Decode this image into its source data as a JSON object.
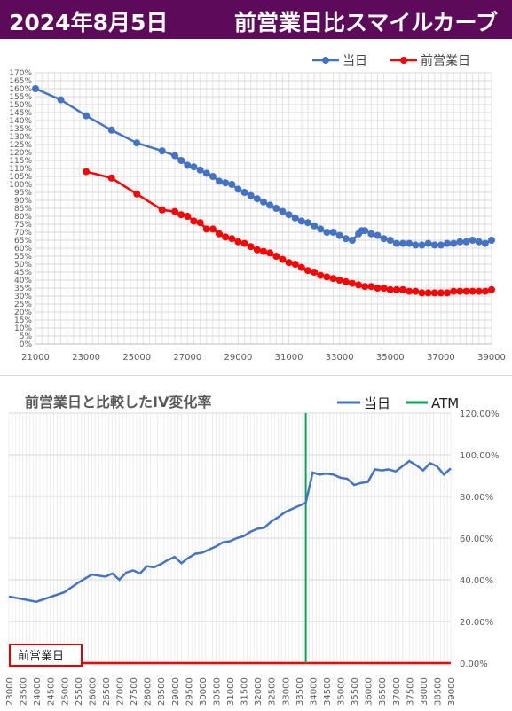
{
  "header": {
    "date": "2024年8月5日",
    "title": "前営業日比スマイルカーブ"
  },
  "colors": {
    "banner": "#5c0a59",
    "today": "#4472c4",
    "prev": "#ff0000",
    "atm": "#00a651"
  },
  "chart_data": [
    {
      "type": "line",
      "title": "",
      "x_ticks": [
        "21000",
        "23000",
        "25000",
        "27000",
        "29000",
        "31000",
        "33000",
        "35000",
        "37000",
        "39000"
      ],
      "xlim": [
        21000,
        39000
      ],
      "ylim": [
        0,
        170
      ],
      "y_ticks": [
        "0%",
        "5%",
        "10%",
        "15%",
        "20%",
        "25%",
        "30%",
        "35%",
        "40%",
        "45%",
        "50%",
        "55%",
        "60%",
        "65%",
        "70%",
        "75%",
        "80%",
        "85%",
        "90%",
        "95%",
        "100%",
        "105%",
        "110%",
        "115%",
        "120%",
        "125%",
        "130%",
        "135%",
        "140%",
        "145%",
        "150%",
        "155%",
        "160%",
        "165%",
        "170%"
      ],
      "legend_position": "top-right",
      "series": [
        {
          "name": "当日",
          "color": "#4472c4",
          "x": [
            21000,
            22000,
            23000,
            24000,
            25000,
            26000,
            26500,
            26750,
            27000,
            27250,
            27500,
            27750,
            28000,
            28250,
            28500,
            28750,
            29000,
            29250,
            29500,
            29750,
            30000,
            30250,
            30500,
            30750,
            31000,
            31250,
            31500,
            31750,
            32000,
            32250,
            32500,
            32750,
            33000,
            33250,
            33500,
            33750,
            33875,
            34000,
            34250,
            34500,
            34750,
            35000,
            35250,
            35500,
            35750,
            36000,
            36250,
            36500,
            36750,
            37000,
            37250,
            37500,
            37750,
            38000,
            38250,
            38500,
            38750,
            39000
          ],
          "y": [
            160,
            153,
            143,
            134,
            126,
            121,
            118,
            115,
            112,
            111,
            109,
            107,
            105,
            102,
            101,
            100,
            97,
            95,
            93,
            91,
            89,
            87,
            85,
            83,
            81,
            79,
            77,
            76,
            74,
            72,
            70,
            70,
            68,
            66,
            65,
            69,
            71,
            71,
            69,
            68,
            66,
            65,
            63,
            63,
            63,
            62,
            62,
            63,
            62,
            62,
            63,
            63,
            64,
            64,
            65,
            64,
            63,
            65
          ]
        },
        {
          "name": "前営業日",
          "color": "#ff0000",
          "x": [
            23000,
            24000,
            25000,
            26000,
            26500,
            26750,
            27000,
            27250,
            27500,
            27750,
            28000,
            28250,
            28500,
            28750,
            29000,
            29250,
            29500,
            29750,
            30000,
            30250,
            30500,
            30750,
            31000,
            31250,
            31500,
            31750,
            32000,
            32250,
            32500,
            32750,
            33000,
            33250,
            33500,
            33750,
            34000,
            34250,
            34500,
            34750,
            35000,
            35250,
            35500,
            35750,
            36000,
            36250,
            36500,
            36750,
            37000,
            37250,
            37500,
            37750,
            38000,
            38250,
            38500,
            38750,
            39000
          ],
          "y": [
            108,
            104,
            94,
            84,
            83,
            81,
            80,
            77,
            76,
            72,
            72,
            69,
            67,
            66,
            64,
            63,
            61,
            59,
            58,
            57,
            55,
            53,
            51,
            50,
            48,
            46,
            45,
            43,
            42,
            41,
            40,
            39,
            38,
            37,
            36,
            36,
            35,
            35,
            34,
            34,
            34,
            33,
            33,
            32,
            32,
            32,
            32,
            32,
            33,
            33,
            33,
            33,
            33,
            33,
            34
          ]
        }
      ]
    },
    {
      "type": "line",
      "title": "前営業日と比較したIV変化率",
      "y_ticks": [
        "0.00%",
        "20.00%",
        "40.00%",
        "60.00%",
        "80.00%",
        "100.00%",
        "120.00%"
      ],
      "ylim": [
        0,
        120
      ],
      "x_ticks": [
        "23000",
        "23500",
        "24000",
        "24500",
        "25000",
        "25500",
        "26000",
        "26500",
        "27000",
        "27500",
        "28000",
        "28500",
        "29000",
        "29500",
        "30000",
        "30500",
        "31000",
        "31500",
        "32000",
        "32500",
        "33000",
        "33500",
        "34000",
        "34500",
        "35000",
        "35500",
        "36000",
        "36500",
        "37000",
        "37500",
        "38000",
        "38500",
        "39000"
      ],
      "xlim": [
        23000,
        39000
      ],
      "atm_x": 33750,
      "legend_position": "top-right",
      "baseline_label": "前営業日",
      "series": [
        {
          "name": "当日",
          "color": "#4472c4",
          "x": [
            23000,
            24000,
            25000,
            25500,
            25750,
            26000,
            26250,
            26500,
            26750,
            27000,
            27250,
            27500,
            27750,
            28000,
            28250,
            28500,
            28750,
            29000,
            29250,
            29500,
            29750,
            30000,
            30250,
            30500,
            30750,
            31000,
            31250,
            31500,
            31750,
            32000,
            32250,
            32500,
            32750,
            33000,
            33250,
            33500,
            33750,
            34000,
            34250,
            34500,
            34750,
            35000,
            35250,
            35500,
            35750,
            36000,
            36250,
            36500,
            36750,
            37000,
            37250,
            37500,
            37750,
            38000,
            38250,
            38500,
            38750,
            39000
          ],
          "y": [
            32,
            29.5,
            34,
            38.5,
            40.5,
            42.5,
            42,
            41.5,
            43,
            40,
            43.5,
            44.5,
            43,
            46.5,
            46,
            47.5,
            49.5,
            51,
            48,
            50.5,
            52.5,
            53,
            54.5,
            56,
            58,
            58.5,
            60,
            61,
            63,
            64.5,
            65,
            68,
            70,
            72.5,
            74,
            75.5,
            77,
            91.5,
            90.5,
            91,
            90.5,
            89,
            88.5,
            85.5,
            86.5,
            87,
            93,
            92.5,
            93,
            92,
            94.5,
            97,
            95,
            92.5,
            96,
            94.5,
            90.5,
            93.5
          ]
        },
        {
          "name": "ATM",
          "color": "#00a651",
          "x": [],
          "y": []
        }
      ]
    }
  ]
}
